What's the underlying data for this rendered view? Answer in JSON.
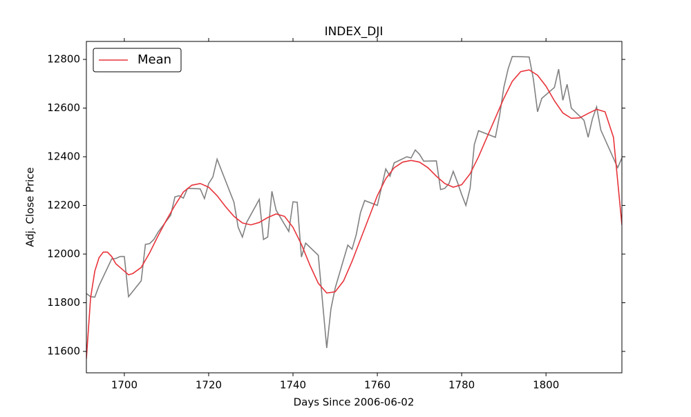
{
  "chart_data": {
    "type": "line",
    "title": "INDEX_DJI",
    "x_label": "Days Since 2006-06-02",
    "y_label": "Adj. Close Price",
    "xlim": [
      1691,
      1818
    ],
    "ylim": [
      11512,
      12874
    ],
    "xticks": [
      1700,
      1720,
      1740,
      1760,
      1780,
      1800
    ],
    "yticks": [
      11600,
      11800,
      12000,
      12200,
      12400,
      12600,
      12800
    ],
    "legend": "upper left",
    "series": [
      {
        "color": "#808080",
        "x": [
          1691,
          1692,
          1693,
          1694,
          1697,
          1698,
          1699,
          1700,
          1701,
          1704,
          1705,
          1706,
          1707,
          1708,
          1711,
          1712,
          1713,
          1714,
          1715,
          1718,
          1719,
          1720,
          1721,
          1722,
          1726,
          1727,
          1728,
          1729,
          1732,
          1733,
          1734,
          1735,
          1736,
          1739,
          1740,
          1741,
          1742,
          1743,
          1746,
          1748,
          1749,
          1750,
          1753,
          1754,
          1755,
          1756,
          1757,
          1760,
          1762,
          1763,
          1764,
          1767,
          1768,
          1769,
          1770,
          1771,
          1774,
          1775,
          1776,
          1777,
          1778,
          1779,
          1780,
          1781,
          1782,
          1783,
          1784,
          1788,
          1789,
          1790,
          1791,
          1792,
          1796,
          1797,
          1798,
          1799,
          1802,
          1803,
          1804,
          1805,
          1806,
          1809,
          1810,
          1811,
          1812,
          1813,
          1817,
          1818
        ],
        "values": [
          11838,
          11825,
          11823,
          11870,
          11980,
          11982,
          11990,
          11990,
          11825,
          11890,
          12040,
          12043,
          12060,
          12090,
          12160,
          12235,
          12240,
          12230,
          12270,
          12268,
          12228,
          12290,
          12317,
          12390,
          12213,
          12110,
          12070,
          12130,
          12225,
          12060,
          12070,
          12258,
          12180,
          12093,
          12215,
          12213,
          11988,
          12045,
          11995,
          11614,
          11775,
          11860,
          12037,
          12020,
          12080,
          12170,
          12220,
          12200,
          12350,
          12320,
          12375,
          12400,
          12395,
          12428,
          12410,
          12382,
          12383,
          12265,
          12270,
          12290,
          12340,
          12295,
          12245,
          12200,
          12270,
          12450,
          12507,
          12480,
          12570,
          12685,
          12760,
          12812,
          12810,
          12720,
          12585,
          12640,
          12685,
          12760,
          12632,
          12698,
          12600,
          12550,
          12480,
          12555,
          12605,
          12510,
          12355,
          12395
        ]
      },
      {
        "name": "Mean",
        "color": "#e8333a",
        "x": [
          1691,
          1692,
          1693,
          1694,
          1695,
          1696,
          1697,
          1698,
          1700,
          1701,
          1702,
          1704,
          1706,
          1708,
          1710,
          1712,
          1714,
          1716,
          1718,
          1720,
          1722,
          1724,
          1726,
          1728,
          1730,
          1732,
          1734,
          1736,
          1738,
          1740,
          1742,
          1744,
          1746,
          1748,
          1750,
          1752,
          1754,
          1756,
          1758,
          1760,
          1762,
          1764,
          1766,
          1768,
          1770,
          1772,
          1774,
          1776,
          1778,
          1780,
          1782,
          1784,
          1786,
          1788,
          1790,
          1792,
          1794,
          1796,
          1798,
          1800,
          1802,
          1804,
          1806,
          1808,
          1810,
          1812,
          1814,
          1816,
          1818
        ],
        "values": [
          11570,
          11820,
          11930,
          11985,
          12008,
          12008,
          11990,
          11960,
          11930,
          11915,
          11920,
          11945,
          12005,
          12075,
          12140,
          12200,
          12255,
          12283,
          12290,
          12275,
          12240,
          12195,
          12155,
          12128,
          12120,
          12130,
          12150,
          12165,
          12155,
          12110,
          12040,
          11955,
          11880,
          11840,
          11845,
          11890,
          11970,
          12060,
          12150,
          12240,
          12310,
          12355,
          12378,
          12385,
          12378,
          12355,
          12320,
          12290,
          12275,
          12285,
          12330,
          12400,
          12480,
          12560,
          12640,
          12710,
          12750,
          12757,
          12735,
          12690,
          12630,
          12580,
          12558,
          12560,
          12578,
          12595,
          12585,
          12480,
          12120
        ]
      }
    ]
  }
}
